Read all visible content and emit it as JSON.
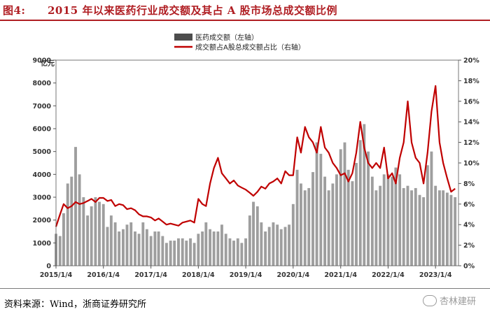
{
  "figure": {
    "label": "图4:",
    "title": "2015 年以来医药行业成交额及其占 A 股市场总成交额比例"
  },
  "source": "资料来源：Wind，浙商证券研究所",
  "watermark": "杏林建研",
  "colors": {
    "title": "#b01e23",
    "bar": "#9e9e9e",
    "line": "#c00000"
  },
  "icons": {
    "watermark": "chat-bubble-icon"
  },
  "chart_data": {
    "type": "bar+line",
    "left_unit": "亿元",
    "left_ticks": [
      "0",
      "1000",
      "2000",
      "3000",
      "4000",
      "5000",
      "6000",
      "7000",
      "8000",
      "9000"
    ],
    "right_ticks": [
      "0%",
      "2%",
      "4%",
      "6%",
      "8%",
      "10%",
      "12%",
      "14%",
      "16%",
      "18%",
      "20%"
    ],
    "ylim_left": [
      0,
      9000
    ],
    "ylim_right": [
      0,
      20
    ],
    "x_ticks": [
      "2015/1/4",
      "2016/1/4",
      "2017/1/4",
      "2018/1/4",
      "2019/1/4",
      "2020/1/4",
      "2021/1/4",
      "2022/1/4",
      "2023/1/4"
    ],
    "x_range": [
      "2015/1/4",
      "2023/6/30"
    ],
    "series": [
      {
        "name": "医药成交额（左轴）",
        "type": "bar",
        "axis": "left",
        "points": [
          [
            "2015/1/4",
            1400
          ],
          [
            "2015/2/4",
            1300
          ],
          [
            "2015/3/4",
            2300
          ],
          [
            "2015/4/4",
            3600
          ],
          [
            "2015/5/4",
            3900
          ],
          [
            "2015/6/4",
            5200
          ],
          [
            "2015/7/4",
            4000
          ],
          [
            "2015/8/4",
            3000
          ],
          [
            "2015/9/4",
            2200
          ],
          [
            "2015/10/4",
            2600
          ],
          [
            "2015/11/4",
            3000
          ],
          [
            "2015/12/4",
            2800
          ],
          [
            "2016/1/4",
            2700
          ],
          [
            "2016/2/4",
            1700
          ],
          [
            "2016/3/4",
            2200
          ],
          [
            "2016/4/4",
            1900
          ],
          [
            "2016/5/4",
            1500
          ],
          [
            "2016/6/4",
            1600
          ],
          [
            "2016/7/4",
            1800
          ],
          [
            "2016/8/4",
            1900
          ],
          [
            "2016/9/4",
            1500
          ],
          [
            "2016/10/4",
            1400
          ],
          [
            "2016/11/4",
            1900
          ],
          [
            "2016/12/4",
            1600
          ],
          [
            "2017/1/4",
            1300
          ],
          [
            "2017/2/4",
            1500
          ],
          [
            "2017/3/4",
            1500
          ],
          [
            "2017/4/4",
            1300
          ],
          [
            "2017/5/4",
            1000
          ],
          [
            "2017/6/4",
            1100
          ],
          [
            "2017/7/4",
            1100
          ],
          [
            "2017/8/4",
            1200
          ],
          [
            "2017/9/4",
            1200
          ],
          [
            "2017/10/4",
            1100
          ],
          [
            "2017/11/4",
            1200
          ],
          [
            "2017/12/4",
            1000
          ],
          [
            "2018/1/4",
            1400
          ],
          [
            "2018/2/4",
            1500
          ],
          [
            "2018/3/4",
            1900
          ],
          [
            "2018/4/4",
            1600
          ],
          [
            "2018/5/4",
            1500
          ],
          [
            "2018/6/4",
            1500
          ],
          [
            "2018/7/4",
            1800
          ],
          [
            "2018/8/4",
            1400
          ],
          [
            "2018/9/4",
            1200
          ],
          [
            "2018/10/4",
            1100
          ],
          [
            "2018/11/4",
            1200
          ],
          [
            "2018/12/4",
            1000
          ],
          [
            "2019/1/4",
            1200
          ],
          [
            "2019/2/4",
            2200
          ],
          [
            "2019/3/4",
            2800
          ],
          [
            "2019/4/4",
            2600
          ],
          [
            "2019/5/4",
            1900
          ],
          [
            "2019/6/4",
            1500
          ],
          [
            "2019/7/4",
            1700
          ],
          [
            "2019/8/4",
            1900
          ],
          [
            "2019/9/4",
            1800
          ],
          [
            "2019/10/4",
            1600
          ],
          [
            "2019/11/4",
            1700
          ],
          [
            "2019/12/4",
            1800
          ],
          [
            "2020/1/4",
            2700
          ],
          [
            "2020/2/4",
            4200
          ],
          [
            "2020/3/4",
            3600
          ],
          [
            "2020/4/4",
            3300
          ],
          [
            "2020/5/4",
            3400
          ],
          [
            "2020/6/4",
            4100
          ],
          [
            "2020/7/4",
            5400
          ],
          [
            "2020/8/4",
            4900
          ],
          [
            "2020/9/4",
            3900
          ],
          [
            "2020/10/4",
            3300
          ],
          [
            "2020/11/4",
            3600
          ],
          [
            "2020/12/4",
            4000
          ],
          [
            "2021/1/4",
            5100
          ],
          [
            "2021/2/4",
            5400
          ],
          [
            "2021/3/4",
            4200
          ],
          [
            "2021/4/4",
            3700
          ],
          [
            "2021/5/4",
            4500
          ],
          [
            "2021/6/4",
            5500
          ],
          [
            "2021/7/4",
            6200
          ],
          [
            "2021/8/4",
            5000
          ],
          [
            "2021/9/4",
            3900
          ],
          [
            "2021/10/4",
            3300
          ],
          [
            "2021/11/4",
            3500
          ],
          [
            "2021/12/4",
            4000
          ],
          [
            "2022/1/4",
            4000
          ],
          [
            "2022/2/4",
            3900
          ],
          [
            "2022/3/4",
            4300
          ],
          [
            "2022/4/4",
            4000
          ],
          [
            "2022/5/4",
            3400
          ],
          [
            "2022/6/4",
            3500
          ],
          [
            "2022/7/4",
            3300
          ],
          [
            "2022/8/4",
            3400
          ],
          [
            "2022/9/4",
            3100
          ],
          [
            "2022/10/4",
            3000
          ],
          [
            "2022/11/4",
            4400
          ],
          [
            "2022/12/4",
            5000
          ],
          [
            "2023/1/4",
            3500
          ],
          [
            "2023/2/4",
            3300
          ],
          [
            "2023/3/4",
            3300
          ],
          [
            "2023/4/4",
            3200
          ],
          [
            "2023/5/4",
            3100
          ],
          [
            "2023/6/4",
            3000
          ]
        ]
      },
      {
        "name": "成交额占A股总成交额占比（右轴）",
        "type": "line",
        "axis": "right",
        "points": [
          [
            "2015/1/4",
            3.8
          ],
          [
            "2015/2/4",
            5.0
          ],
          [
            "2015/3/4",
            6.0
          ],
          [
            "2015/4/4",
            5.6
          ],
          [
            "2015/5/4",
            5.8
          ],
          [
            "2015/6/4",
            6.2
          ],
          [
            "2015/7/4",
            6.0
          ],
          [
            "2015/8/4",
            6.1
          ],
          [
            "2015/9/4",
            6.3
          ],
          [
            "2015/10/4",
            6.5
          ],
          [
            "2015/11/4",
            6.2
          ],
          [
            "2015/12/4",
            6.6
          ],
          [
            "2016/1/4",
            6.6
          ],
          [
            "2016/2/4",
            6.3
          ],
          [
            "2016/3/4",
            6.4
          ],
          [
            "2016/4/4",
            5.8
          ],
          [
            "2016/5/4",
            6.0
          ],
          [
            "2016/6/4",
            5.9
          ],
          [
            "2016/7/4",
            5.5
          ],
          [
            "2016/8/4",
            5.6
          ],
          [
            "2016/9/4",
            5.4
          ],
          [
            "2016/10/4",
            5.0
          ],
          [
            "2016/11/4",
            4.8
          ],
          [
            "2016/12/4",
            4.8
          ],
          [
            "2017/1/4",
            4.7
          ],
          [
            "2017/2/4",
            4.4
          ],
          [
            "2017/3/4",
            4.6
          ],
          [
            "2017/4/4",
            4.3
          ],
          [
            "2017/5/4",
            4.0
          ],
          [
            "2017/6/4",
            4.1
          ],
          [
            "2017/7/4",
            4.0
          ],
          [
            "2017/8/4",
            3.9
          ],
          [
            "2017/9/4",
            4.2
          ],
          [
            "2017/10/4",
            4.3
          ],
          [
            "2017/11/4",
            4.4
          ],
          [
            "2017/12/4",
            4.2
          ],
          [
            "2018/1/4",
            6.5
          ],
          [
            "2018/2/4",
            6.0
          ],
          [
            "2018/3/4",
            5.8
          ],
          [
            "2018/4/4",
            8.0
          ],
          [
            "2018/5/4",
            9.5
          ],
          [
            "2018/6/4",
            10.5
          ],
          [
            "2018/7/4",
            9.0
          ],
          [
            "2018/8/4",
            8.5
          ],
          [
            "2018/9/4",
            8.0
          ],
          [
            "2018/10/4",
            8.3
          ],
          [
            "2018/11/4",
            7.8
          ],
          [
            "2018/12/4",
            7.6
          ],
          [
            "2019/1/4",
            7.4
          ],
          [
            "2019/2/4",
            7.1
          ],
          [
            "2019/3/4",
            6.8
          ],
          [
            "2019/4/4",
            7.2
          ],
          [
            "2019/5/4",
            7.7
          ],
          [
            "2019/6/4",
            7.5
          ],
          [
            "2019/7/4",
            8.0
          ],
          [
            "2019/8/4",
            8.2
          ],
          [
            "2019/9/4",
            8.5
          ],
          [
            "2019/10/4",
            8.0
          ],
          [
            "2019/11/4",
            9.2
          ],
          [
            "2019/12/4",
            8.8
          ],
          [
            "2020/1/4",
            8.8
          ],
          [
            "2020/2/4",
            12.5
          ],
          [
            "2020/3/4",
            11.0
          ],
          [
            "2020/4/4",
            13.5
          ],
          [
            "2020/5/4",
            12.5
          ],
          [
            "2020/6/4",
            12.0
          ],
          [
            "2020/7/4",
            11.0
          ],
          [
            "2020/8/4",
            13.5
          ],
          [
            "2020/9/4",
            11.5
          ],
          [
            "2020/10/4",
            11.0
          ],
          [
            "2020/11/4",
            10.0
          ],
          [
            "2020/12/4",
            9.5
          ],
          [
            "2021/1/4",
            8.8
          ],
          [
            "2021/2/4",
            9.0
          ],
          [
            "2021/3/4",
            8.2
          ],
          [
            "2021/4/4",
            9.0
          ],
          [
            "2021/5/4",
            11.0
          ],
          [
            "2021/6/4",
            14.0
          ],
          [
            "2021/7/4",
            11.5
          ],
          [
            "2021/8/4",
            10.0
          ],
          [
            "2021/9/4",
            9.5
          ],
          [
            "2021/10/4",
            10.0
          ],
          [
            "2021/11/4",
            9.5
          ],
          [
            "2021/12/4",
            11.5
          ],
          [
            "2022/1/4",
            8.5
          ],
          [
            "2022/2/4",
            9.0
          ],
          [
            "2022/3/4",
            8.0
          ],
          [
            "2022/4/4",
            10.5
          ],
          [
            "2022/5/4",
            12.0
          ],
          [
            "2022/6/4",
            16.0
          ],
          [
            "2022/7/4",
            12.0
          ],
          [
            "2022/8/4",
            10.5
          ],
          [
            "2022/9/4",
            10.0
          ],
          [
            "2022/10/4",
            8.0
          ],
          [
            "2022/11/4",
            11.0
          ],
          [
            "2022/12/4",
            15.0
          ],
          [
            "2023/1/4",
            17.5
          ],
          [
            "2023/2/4",
            12.0
          ],
          [
            "2023/3/4",
            10.0
          ],
          [
            "2023/4/4",
            8.5
          ],
          [
            "2023/5/4",
            7.2
          ],
          [
            "2023/6/4",
            7.5
          ]
        ]
      }
    ]
  }
}
